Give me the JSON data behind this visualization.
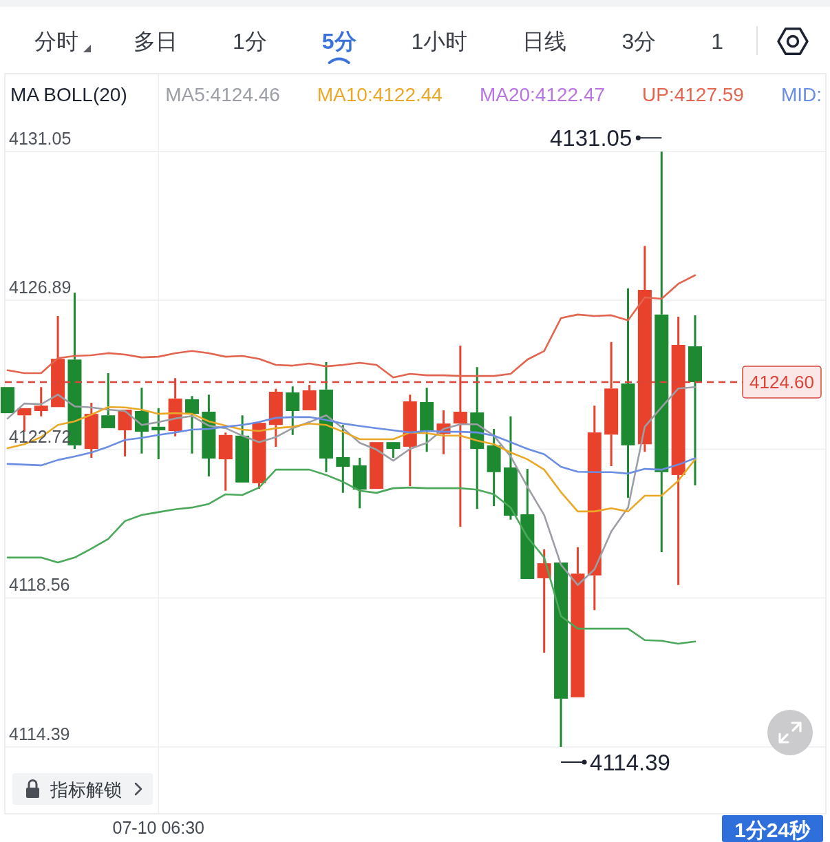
{
  "chart_data": {
    "type": "candlestick",
    "legend_title": "MA BOLL(20)",
    "categories": [
      null,
      null,
      null,
      null,
      null,
      null,
      null,
      null,
      null,
      "07-10 06:30",
      null,
      null,
      null,
      null,
      null,
      null,
      null,
      null,
      null,
      null,
      null,
      null,
      null,
      null,
      null,
      null,
      null,
      null,
      null,
      null,
      null,
      null,
      null,
      null,
      null,
      null,
      null,
      null,
      null,
      null,
      null,
      null
    ],
    "ohlc": [
      [
        4124.46,
        4124.46,
        4123.73,
        4123.73
      ],
      [
        4123.67,
        4123.87,
        4123.21,
        4123.87
      ],
      [
        4123.79,
        4124.46,
        4123.64,
        4123.94
      ],
      [
        4123.9,
        4126.45,
        4123.9,
        4125.25
      ],
      [
        4125.23,
        4127.1,
        4122.73,
        4122.83
      ],
      [
        4122.73,
        4124.02,
        4122.48,
        4123.71
      ],
      [
        4123.67,
        4124.85,
        4123.31,
        4123.31
      ],
      [
        4123.25,
        4123.83,
        4122.52,
        4123.83
      ],
      [
        4123.79,
        4124.44,
        4122.6,
        4123.21
      ],
      [
        4123.35,
        4123.87,
        4122.44,
        4123.25
      ],
      [
        4123.23,
        4124.71,
        4123.08,
        4124.14
      ],
      [
        4124.12,
        4124.21,
        4122.6,
        4123.71
      ],
      [
        4123.77,
        4124.25,
        4121.96,
        4122.46
      ],
      [
        4122.44,
        4123.19,
        4121.56,
        4123.12
      ],
      [
        4123.1,
        4123.67,
        4121.79,
        4121.79
      ],
      [
        4121.77,
        4123.46,
        4121.61,
        4123.46
      ],
      [
        4123.4,
        4124.41,
        4122.79,
        4124.33
      ],
      [
        4124.31,
        4124.48,
        4123.12,
        4123.79
      ],
      [
        4123.81,
        4124.52,
        4123.81,
        4124.37
      ],
      [
        4124.39,
        4125.16,
        4122.08,
        4122.46
      ],
      [
        4122.5,
        4123.4,
        4121.5,
        4122.23
      ],
      [
        4122.27,
        4122.48,
        4121.07,
        4121.59
      ],
      [
        4121.61,
        4122.92,
        4121.61,
        4122.92
      ],
      [
        4122.92,
        4122.92,
        4122.48,
        4122.73
      ],
      [
        4122.79,
        4124.25,
        4121.69,
        4124.06
      ],
      [
        4124.04,
        4124.44,
        4122.65,
        4123.23
      ],
      [
        4123.15,
        4123.81,
        4122.58,
        4123.44
      ],
      [
        4123.44,
        4125.62,
        4120.55,
        4123.77
      ],
      [
        4123.75,
        4125.02,
        4121.05,
        4122.73
      ],
      [
        4122.83,
        4123.29,
        4121.13,
        4122.08
      ],
      [
        4122.21,
        4123.64,
        4120.75,
        4120.86
      ],
      [
        4120.9,
        4122.17,
        4119.09,
        4119.09
      ],
      [
        4119.11,
        4119.92,
        4117.03,
        4119.53
      ],
      [
        4119.55,
        4119.55,
        4114.39,
        4115.74
      ],
      [
        4115.78,
        4119.98,
        4115.78,
        4119.24
      ],
      [
        4119.19,
        4123.94,
        4118.22,
        4123.19
      ],
      [
        4123.13,
        4125.72,
        4122.25,
        4124.42
      ],
      [
        4124.56,
        4127.22,
        4121.36,
        4122.83
      ],
      [
        4122.86,
        4128.41,
        4122.65,
        4127.18
      ],
      [
        4126.49,
        4131.05,
        4119.84,
        4122.08
      ],
      [
        4122,
        4126.43,
        4118.92,
        4125.64
      ],
      [
        4125.6,
        4126.47,
        4121.71,
        4124.6
      ]
    ],
    "series": [
      {
        "type": "line",
        "name": "MA5:4124.46",
        "color": "#9b9ea5",
        "values": [
          4123.58,
          4124.0,
          4123.98,
          4124.25,
          4123.92,
          4123.89,
          4123.83,
          4123.79,
          4123.4,
          4123.48,
          4123.58,
          4123.65,
          4123.38,
          4123.31,
          4123.1,
          4122.92,
          4123.06,
          4123.31,
          4123.48,
          4123.67,
          4123.31,
          4122.9,
          4122.71,
          4122.4,
          4122.73,
          4122.9,
          4123.29,
          4123.42,
          4123.42,
          4123.1,
          4122.52,
          4121.67,
          4120.88,
          4119.49,
          4118.92,
          4119.36,
          4120.42,
          4121.09,
          4123.35,
          4123.9,
          4124.42,
          4124.46
        ]
      },
      {
        "type": "line",
        "name": "MA10:4122.44",
        "color": "#eaa829",
        "values": [
          4122.75,
          4122.86,
          4123.06,
          4123.4,
          4123.5,
          4123.69,
          4123.9,
          4123.89,
          4123.83,
          4123.71,
          4123.73,
          4123.71,
          4123.5,
          4123.38,
          4123.27,
          4123.23,
          4123.31,
          4123.35,
          4123.44,
          4123.4,
          4123.21,
          4123.0,
          4123.0,
          4123.0,
          4123.19,
          4123.17,
          4123.1,
          4123.1,
          4122.96,
          4122.86,
          4122.63,
          4122.44,
          4122.15,
          4121.52,
          4120.98,
          4120.98,
          4121.07,
          4120.98,
          4121.42,
          4121.42,
          4121.84,
          4122.44
        ]
      },
      {
        "type": "line",
        "name": "MA20:4122.47",
        "color": "#b874e0",
        "values": [
          null,
          null,
          null,
          null,
          null,
          null,
          null,
          null,
          null,
          null,
          null,
          null,
          null,
          null,
          null,
          null,
          null,
          null,
          null,
          null,
          null,
          null,
          null,
          null,
          null,
          null,
          null,
          null,
          null,
          null,
          null,
          null,
          null,
          null,
          null,
          null,
          null,
          null,
          null,
          null,
          null,
          null
        ]
      },
      {
        "type": "line",
        "name": "UP:4127.59",
        "color": "#e2654f",
        "values": [
          4124.93,
          4124.85,
          4124.85,
          4125.27,
          4125.33,
          4125.35,
          4125.41,
          4125.37,
          4125.29,
          4125.31,
          4125.41,
          4125.47,
          4125.41,
          4125.31,
          4125.33,
          4125.25,
          4125.08,
          4125.06,
          4125.12,
          4125.04,
          4125.08,
          4125.14,
          4125.08,
          4124.73,
          4124.83,
          4124.79,
          4124.79,
          4124.77,
          4124.77,
          4124.77,
          4124.83,
          4125.23,
          4125.47,
          4126.39,
          4126.49,
          4126.45,
          4126.47,
          4126.33,
          4126.97,
          4126.93,
          4127.35,
          4127.59
        ]
      },
      {
        "type": "line",
        "name": "MID:",
        "color": "#6b8ee3",
        "values": [
          4122.31,
          4122.29,
          4122.27,
          4122.42,
          4122.52,
          4122.63,
          4122.79,
          4122.98,
          4123.04,
          4123.12,
          4123.19,
          4123.27,
          4123.29,
          4123.35,
          4123.4,
          4123.48,
          4123.6,
          4123.62,
          4123.62,
          4123.54,
          4123.44,
          4123.37,
          4123.31,
          4123.25,
          4123.19,
          4123.23,
          4123.21,
          4123.21,
          4123.19,
          4123.1,
          4122.92,
          4122.73,
          4122.58,
          4122.23,
          4122.09,
          4122.08,
          4122.08,
          4122.04,
          4122.17,
          4122.15,
          4122.29,
          4122.47
        ]
      },
      {
        "type": "line",
        "color": "#4ca85b",
        "values": [
          4119.69,
          4119.69,
          4119.69,
          4119.55,
          4119.69,
          4119.94,
          4120.21,
          4120.71,
          4120.88,
          4120.96,
          4121.04,
          4121.09,
          4121.19,
          4121.46,
          4121.44,
          4121.65,
          4122.15,
          4122.15,
          4122.15,
          4122.0,
          4121.81,
          4121.56,
          4121.5,
          4121.63,
          4121.65,
          4121.63,
          4121.63,
          4121.63,
          4121.59,
          4121.46,
          4121.09,
          4120.26,
          4119.69,
          4118.05,
          4117.7,
          4117.7,
          4117.7,
          4117.7,
          4117.38,
          4117.36,
          4117.28,
          4117.34
        ]
      }
    ],
    "ylim": [
      4112.52,
      4133.23
    ],
    "yticks": [
      4114.39,
      4118.56,
      4122.72,
      4126.89,
      4131.05
    ],
    "grid": true,
    "legend": "top right",
    "ref_lines": [
      {
        "axis": "y",
        "value": 4124.6,
        "label": "4124.60",
        "color": "#d9453a",
        "line_style": "dashed"
      }
    ],
    "annotations": [
      "分时",
      "多日",
      "1分",
      "5分",
      "1小时",
      "日线",
      "3分",
      "1",
      "4131.05",
      "4114.39",
      "指标解锁",
      "1分24秒"
    ]
  }
}
